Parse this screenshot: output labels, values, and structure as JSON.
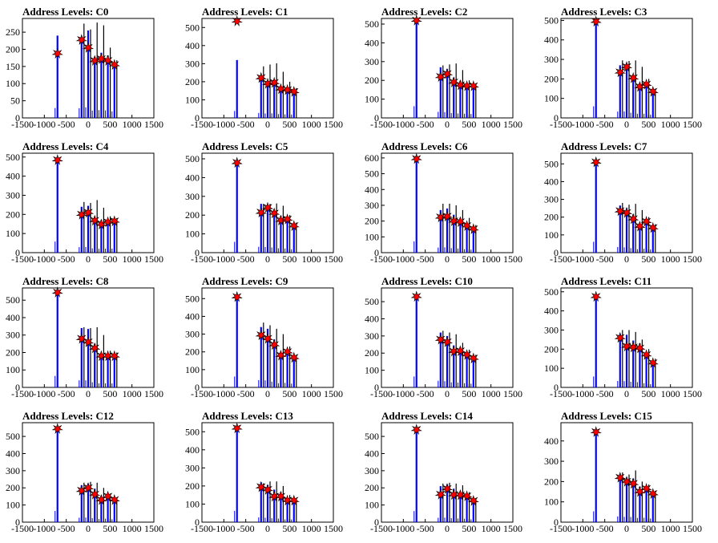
{
  "chart_data": {
    "type": "bar",
    "xlim": [
      -1500,
      1500
    ],
    "x_ticks": [
      -1500,
      -1000,
      -500,
      0,
      500,
      1000,
      1500
    ],
    "peak_x": [
      -700,
      -150,
      0,
      150,
      300,
      450,
      600
    ],
    "colors": {
      "bars": "#0000ff",
      "spikes": "#000000",
      "markers": "#ff0000"
    },
    "panels": [
      {
        "title": "Address Levels: C0",
        "ylim": [
          0,
          290
        ],
        "y_ticks": [
          0,
          50,
          100,
          150,
          200,
          250
        ],
        "stars": [
          [
            -700,
            188
          ],
          [
            -150,
            228
          ],
          [
            0,
            205
          ],
          [
            150,
            167
          ],
          [
            300,
            172
          ],
          [
            450,
            167
          ],
          [
            600,
            155
          ]
        ],
        "bars": [
          240,
          235,
          255,
          178,
          190,
          182,
          158
        ],
        "spikes": [
          0,
          275,
          258,
          278,
          270,
          205,
          168
        ]
      },
      {
        "title": "Address Levels: C1",
        "ylim": [
          0,
          550
        ],
        "y_ticks": [
          0,
          100,
          200,
          300,
          400,
          500
        ],
        "stars": [
          [
            -700,
            535
          ],
          [
            -150,
            222
          ],
          [
            0,
            190
          ],
          [
            150,
            195
          ],
          [
            300,
            160
          ],
          [
            450,
            155
          ],
          [
            600,
            145
          ]
        ],
        "bars": [
          320,
          228,
          205,
          212,
          178,
          165,
          155
        ],
        "spikes": [
          0,
          285,
          295,
          302,
          255,
          200,
          165
        ]
      },
      {
        "title": "Address Levels: C2",
        "ylim": [
          0,
          530
        ],
        "y_ticks": [
          0,
          100,
          200,
          300,
          400,
          500
        ],
        "stars": [
          [
            -700,
            520
          ],
          [
            -150,
            220
          ],
          [
            0,
            235
          ],
          [
            150,
            190
          ],
          [
            300,
            175
          ],
          [
            450,
            170
          ],
          [
            600,
            170
          ]
        ],
        "bars": [
          520,
          270,
          260,
          215,
          198,
          185,
          175
        ],
        "spikes": [
          0,
          280,
          285,
          290,
          255,
          200,
          180
        ]
      },
      {
        "title": "Address Levels: C3",
        "ylim": [
          0,
          510
        ],
        "y_ticks": [
          0,
          100,
          200,
          300,
          400,
          500
        ],
        "stars": [
          [
            -700,
            495
          ],
          [
            -150,
            235
          ],
          [
            0,
            262
          ],
          [
            150,
            205
          ],
          [
            300,
            160
          ],
          [
            450,
            172
          ],
          [
            600,
            135
          ]
        ],
        "bars": [
          495,
          270,
          280,
          220,
          180,
          178,
          140
        ],
        "spikes": [
          0,
          295,
          292,
          295,
          262,
          200,
          150
        ]
      },
      {
        "title": "Address Levels: C4",
        "ylim": [
          0,
          520
        ],
        "y_ticks": [
          0,
          100,
          200,
          300,
          400,
          500
        ],
        "stars": [
          [
            -700,
            485
          ],
          [
            -150,
            200
          ],
          [
            0,
            210
          ],
          [
            150,
            168
          ],
          [
            300,
            148
          ],
          [
            450,
            160
          ],
          [
            600,
            165
          ]
        ],
        "bars": [
          485,
          240,
          245,
          188,
          170,
          175,
          175
        ],
        "spikes": [
          0,
          265,
          260,
          275,
          235,
          190,
          180
        ]
      },
      {
        "title": "Address Levels: C5",
        "ylim": [
          0,
          530
        ],
        "y_ticks": [
          0,
          100,
          200,
          300,
          400,
          500
        ],
        "stars": [
          [
            -700,
            480
          ],
          [
            -150,
            215
          ],
          [
            0,
            240
          ],
          [
            150,
            210
          ],
          [
            300,
            172
          ],
          [
            450,
            178
          ],
          [
            600,
            143
          ]
        ],
        "bars": [
          480,
          260,
          250,
          230,
          195,
          185,
          150
        ],
        "spikes": [
          0,
          260,
          260,
          262,
          250,
          200,
          160
        ]
      },
      {
        "title": "Address Levels: C6",
        "ylim": [
          0,
          630
        ],
        "y_ticks": [
          0,
          100,
          200,
          300,
          400,
          500,
          600
        ],
        "stars": [
          [
            -700,
            595
          ],
          [
            -150,
            225
          ],
          [
            0,
            230
          ],
          [
            150,
            200
          ],
          [
            300,
            195
          ],
          [
            450,
            170
          ],
          [
            600,
            150
          ]
        ],
        "bars": [
          595,
          270,
          280,
          240,
          220,
          185,
          160
        ],
        "spikes": [
          0,
          310,
          310,
          300,
          270,
          220,
          175
        ]
      },
      {
        "title": "Address Levels: C7",
        "ylim": [
          0,
          560
        ],
        "y_ticks": [
          0,
          100,
          200,
          300,
          400,
          500
        ],
        "stars": [
          [
            -700,
            510
          ],
          [
            -150,
            235
          ],
          [
            0,
            225
          ],
          [
            150,
            190
          ],
          [
            300,
            148
          ],
          [
            450,
            175
          ],
          [
            600,
            140
          ]
        ],
        "bars": [
          510,
          265,
          250,
          215,
          165,
          185,
          150
        ],
        "spikes": [
          0,
          280,
          270,
          275,
          240,
          200,
          160
        ]
      },
      {
        "title": "Address Levels: C8",
        "ylim": [
          0,
          570
        ],
        "y_ticks": [
          0,
          100,
          200,
          300,
          400,
          500
        ],
        "stars": [
          [
            -700,
            545
          ],
          [
            -150,
            280
          ],
          [
            0,
            260
          ],
          [
            150,
            225
          ],
          [
            300,
            180
          ],
          [
            450,
            180
          ],
          [
            600,
            180
          ]
        ],
        "bars": [
          545,
          340,
          335,
          250,
          198,
          195,
          190
        ],
        "spikes": [
          0,
          345,
          340,
          345,
          300,
          210,
          200
        ]
      },
      {
        "title": "Address Levels: C9",
        "ylim": [
          0,
          560
        ],
        "y_ticks": [
          0,
          100,
          200,
          300,
          400,
          500
        ],
        "stars": [
          [
            -700,
            510
          ],
          [
            -150,
            295
          ],
          [
            0,
            275
          ],
          [
            150,
            240
          ],
          [
            300,
            180
          ],
          [
            450,
            200
          ],
          [
            600,
            168
          ]
        ],
        "bars": [
          510,
          340,
          330,
          270,
          200,
          215,
          175
        ],
        "spikes": [
          0,
          365,
          350,
          330,
          300,
          230,
          180
        ]
      },
      {
        "title": "Address Levels: C10",
        "ylim": [
          0,
          580
        ],
        "y_ticks": [
          0,
          100,
          200,
          300,
          400,
          500
        ],
        "stars": [
          [
            -700,
            530
          ],
          [
            -150,
            280
          ],
          [
            0,
            265
          ],
          [
            150,
            210
          ],
          [
            300,
            212
          ],
          [
            450,
            190
          ],
          [
            600,
            170
          ]
        ],
        "bars": [
          530,
          320,
          300,
          245,
          235,
          205,
          180
        ],
        "spikes": [
          0,
          330,
          320,
          310,
          260,
          220,
          190
        ]
      },
      {
        "title": "Address Levels: C11",
        "ylim": [
          0,
          520
        ],
        "y_ticks": [
          0,
          100,
          200,
          300,
          400,
          500
        ],
        "stars": [
          [
            -700,
            475
          ],
          [
            -150,
            260
          ],
          [
            0,
            215
          ],
          [
            150,
            210
          ],
          [
            300,
            205
          ],
          [
            450,
            170
          ],
          [
            600,
            128
          ]
        ],
        "bars": [
          475,
          280,
          275,
          245,
          230,
          185,
          140
        ],
        "spikes": [
          0,
          300,
          300,
          290,
          250,
          200,
          150
        ]
      },
      {
        "title": "Address Levels: C12",
        "ylim": [
          0,
          580
        ],
        "y_ticks": [
          0,
          100,
          200,
          300,
          400,
          500
        ],
        "stars": [
          [
            -700,
            545
          ],
          [
            -150,
            185
          ],
          [
            0,
            200
          ],
          [
            150,
            162
          ],
          [
            300,
            130
          ],
          [
            450,
            150
          ],
          [
            600,
            130
          ]
        ],
        "bars": [
          545,
          215,
          225,
          195,
          155,
          170,
          140
        ],
        "spikes": [
          0,
          230,
          235,
          230,
          200,
          165,
          145
        ]
      },
      {
        "title": "Address Levels: C13",
        "ylim": [
          0,
          550
        ],
        "y_ticks": [
          0,
          100,
          200,
          300,
          400,
          500
        ],
        "stars": [
          [
            -700,
            520
          ],
          [
            -150,
            195
          ],
          [
            0,
            180
          ],
          [
            150,
            142
          ],
          [
            300,
            142
          ],
          [
            450,
            120
          ],
          [
            600,
            120
          ]
        ],
        "bars": [
          520,
          220,
          205,
          180,
          165,
          130,
          125
        ],
        "spikes": [
          0,
          215,
          225,
          225,
          200,
          150,
          130
        ]
      },
      {
        "title": "Address Levels: C14",
        "ylim": [
          0,
          580
        ],
        "y_ticks": [
          0,
          100,
          200,
          300,
          400,
          500
        ],
        "stars": [
          [
            -700,
            540
          ],
          [
            -150,
            162
          ],
          [
            0,
            195
          ],
          [
            150,
            160
          ],
          [
            300,
            158
          ],
          [
            450,
            152
          ],
          [
            600,
            125
          ]
        ],
        "bars": [
          540,
          210,
          220,
          195,
          180,
          165,
          135
        ],
        "spikes": [
          0,
          225,
          230,
          225,
          215,
          175,
          140
        ]
      },
      {
        "title": "Address Levels: C15",
        "ylim": [
          0,
          490
        ],
        "y_ticks": [
          0,
          100,
          200,
          300,
          400
        ],
        "stars": [
          [
            -700,
            445
          ],
          [
            -150,
            220
          ],
          [
            0,
            200
          ],
          [
            150,
            190
          ],
          [
            300,
            150
          ],
          [
            450,
            165
          ],
          [
            600,
            140
          ]
        ],
        "bars": [
          445,
          235,
          220,
          215,
          175,
          180,
          150
        ],
        "spikes": [
          0,
          245,
          235,
          255,
          200,
          185,
          155
        ]
      }
    ]
  }
}
